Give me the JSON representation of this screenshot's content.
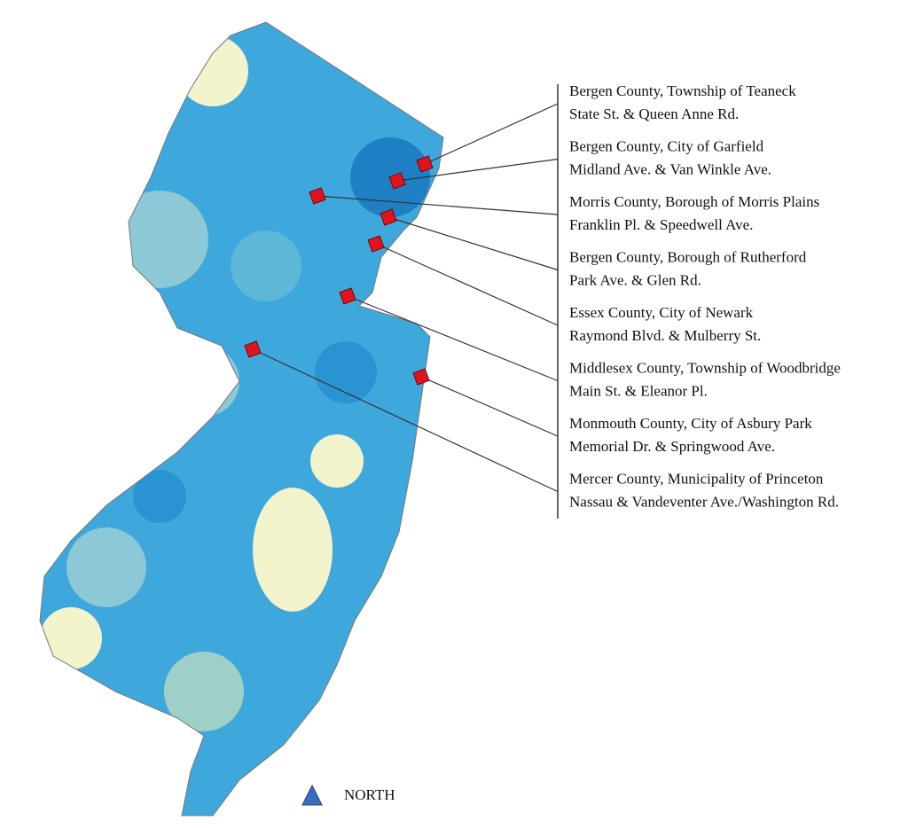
{
  "locations": [
    {
      "line1": "Bergen County, Township of Teaneck",
      "line2": "State St. & Queen Anne Rd."
    },
    {
      "line1": "Bergen County, City of Garfield",
      "line2": "Midland Ave. & Van Winkle Ave."
    },
    {
      "line1": "Morris County, Borough of Morris Plains",
      "line2": "Franklin Pl. & Speedwell Ave."
    },
    {
      "line1": "Bergen County, Borough of Rutherford",
      "line2": "Park Ave. & Glen Rd."
    },
    {
      "line1": "Essex County, City of Newark",
      "line2": "Raymond Blvd. & Mulberry St."
    },
    {
      "line1": "Middlesex County, Township of Woodbridge",
      "line2": "Main St. & Eleanor Pl."
    },
    {
      "line1": "Monmouth County, City of Asbury Park",
      "line2": "Memorial Dr. & Springwood Ave."
    },
    {
      "line1": "Mercer County, Municipality of Princeton",
      "line2": "Nassau & Vandeventer Ave./Washington Rd."
    }
  ],
  "north_label": "NORTH"
}
